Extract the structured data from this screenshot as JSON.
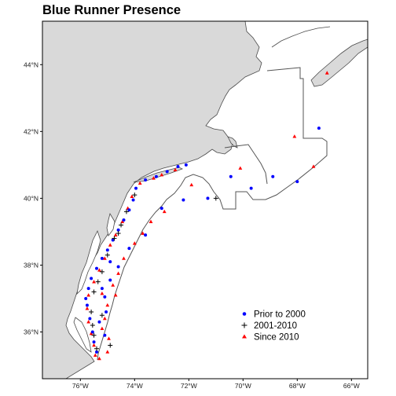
{
  "title": "Blue Runner Presence",
  "colors": {
    "land": "#d9d9d9",
    "coast": "#4a4a4a",
    "boundary": "#555555",
    "prior": "#0000ff",
    "mid": "#000000",
    "recent": "#ff0000"
  },
  "axes": {
    "lat_ticks": [
      "44°N",
      "42°N",
      "40°N",
      "38°N",
      "36°N"
    ],
    "lon_ticks": [
      "76°W",
      "74°W",
      "72°W",
      "70°W",
      "68°W",
      "66°W"
    ]
  },
  "legend": {
    "items": [
      {
        "label": "Prior to 2000",
        "marker": "circle",
        "color": "#0000ff"
      },
      {
        "label": "2001-2010",
        "marker": "plus",
        "color": "#000000"
      },
      {
        "label": "Since 2010",
        "marker": "triangle",
        "color": "#ff0000"
      }
    ]
  },
  "map_data": {
    "extent": {
      "lon": [
        -77.4,
        -65.4
      ],
      "lat": [
        34.6,
        45.3
      ]
    },
    "points_prior": [
      [
        -75.4,
        35.4
      ],
      [
        -75.5,
        35.7
      ],
      [
        -75.55,
        36.0
      ],
      [
        -75.65,
        36.4
      ],
      [
        -75.75,
        36.8
      ],
      [
        -75.8,
        37.0
      ],
      [
        -75.7,
        37.3
      ],
      [
        -75.6,
        37.6
      ],
      [
        -75.4,
        37.9
      ],
      [
        -75.2,
        38.2
      ],
      [
        -75.0,
        38.45
      ],
      [
        -74.8,
        38.75
      ],
      [
        -74.6,
        39.05
      ],
      [
        -74.4,
        39.35
      ],
      [
        -74.2,
        39.65
      ],
      [
        -74.05,
        39.95
      ],
      [
        -73.95,
        40.3
      ],
      [
        -73.6,
        40.55
      ],
      [
        -73.2,
        40.65
      ],
      [
        -72.8,
        40.8
      ],
      [
        -72.4,
        40.95
      ],
      [
        -72.1,
        41.0
      ],
      [
        -75.1,
        35.9
      ],
      [
        -75.05,
        36.6
      ],
      [
        -75.1,
        37.05
      ],
      [
        -74.9,
        37.55
      ],
      [
        -74.6,
        37.95
      ],
      [
        -74.2,
        38.5
      ],
      [
        -73.6,
        38.9
      ],
      [
        -73.0,
        39.7
      ],
      [
        -72.2,
        39.95
      ],
      [
        -71.3,
        40.0
      ],
      [
        -70.45,
        40.65
      ],
      [
        -69.7,
        40.3
      ],
      [
        -68.9,
        40.65
      ],
      [
        -68.0,
        40.5
      ],
      [
        -67.2,
        42.1
      ],
      [
        -75.3,
        36.3
      ],
      [
        -75.2,
        37.3
      ],
      [
        -74.9,
        38.1
      ]
    ],
    "points_mid": [
      [
        -75.4,
        35.5
      ],
      [
        -75.5,
        35.9
      ],
      [
        -75.55,
        36.2
      ],
      [
        -75.6,
        36.6
      ],
      [
        -75.5,
        37.2
      ],
      [
        -75.2,
        37.8
      ],
      [
        -75.0,
        38.3
      ],
      [
        -74.75,
        38.8
      ],
      [
        -74.5,
        39.2
      ],
      [
        -74.3,
        39.6
      ],
      [
        -74.0,
        40.1
      ],
      [
        -74.9,
        35.6
      ],
      [
        -75.2,
        36.5
      ],
      [
        -74.6,
        38.95
      ],
      [
        -71.0,
        40.0
      ],
      [
        -75.35,
        37.5
      ]
    ],
    "points_recent": [
      [
        -75.45,
        35.3
      ],
      [
        -75.5,
        35.6
      ],
      [
        -75.6,
        35.95
      ],
      [
        -75.7,
        36.3
      ],
      [
        -75.75,
        36.7
      ],
      [
        -75.7,
        37.1
      ],
      [
        -75.5,
        37.5
      ],
      [
        -75.3,
        37.85
      ],
      [
        -75.1,
        38.2
      ],
      [
        -74.9,
        38.6
      ],
      [
        -74.7,
        38.9
      ],
      [
        -74.45,
        39.3
      ],
      [
        -74.25,
        39.7
      ],
      [
        -74.1,
        40.05
      ],
      [
        -73.8,
        40.45
      ],
      [
        -73.3,
        40.6
      ],
      [
        -73.0,
        40.7
      ],
      [
        -72.5,
        40.85
      ],
      [
        -75.0,
        35.4
      ],
      [
        -74.95,
        35.8
      ],
      [
        -75.2,
        36.1
      ],
      [
        -75.0,
        36.8
      ],
      [
        -75.2,
        37.15
      ],
      [
        -74.8,
        37.4
      ],
      [
        -74.6,
        37.75
      ],
      [
        -74.4,
        38.2
      ],
      [
        -74.0,
        38.65
      ],
      [
        -73.7,
        38.95
      ],
      [
        -73.4,
        39.3
      ],
      [
        -72.9,
        39.6
      ],
      [
        -71.9,
        40.4
      ],
      [
        -70.1,
        40.9
      ],
      [
        -68.1,
        41.85
      ],
      [
        -67.4,
        40.95
      ],
      [
        -66.9,
        43.75
      ],
      [
        -75.3,
        35.2
      ],
      [
        -75.1,
        36.4
      ],
      [
        -74.7,
        37.1
      ]
    ]
  }
}
